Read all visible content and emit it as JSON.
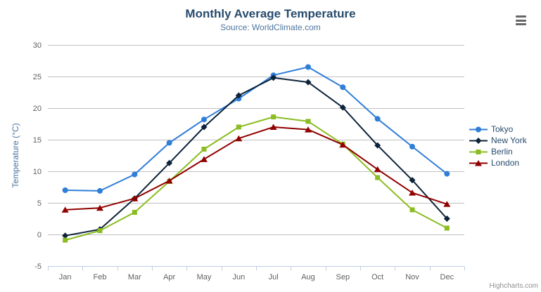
{
  "chart_data": {
    "type": "line",
    "title": "Monthly Average Temperature",
    "subtitle": "Source: WorldClimate.com",
    "xlabel": "",
    "ylabel": "Temperature (°C)",
    "categories": [
      "Jan",
      "Feb",
      "Mar",
      "Apr",
      "May",
      "Jun",
      "Jul",
      "Aug",
      "Sep",
      "Oct",
      "Nov",
      "Dec"
    ],
    "ylim": [
      -5,
      30
    ],
    "yticks": [
      -5,
      0,
      5,
      10,
      15,
      20,
      25,
      30
    ],
    "grid": true,
    "legend_position": "right",
    "series": [
      {
        "name": "Tokyo",
        "color": "#2f7ed8",
        "marker": "circle",
        "values": [
          7.0,
          6.9,
          9.5,
          14.5,
          18.2,
          21.5,
          25.2,
          26.5,
          23.3,
          18.3,
          13.9,
          9.6
        ]
      },
      {
        "name": "New York",
        "color": "#0d233a",
        "marker": "diamond",
        "values": [
          -0.2,
          0.8,
          5.7,
          11.3,
          17.0,
          22.0,
          24.8,
          24.1,
          20.1,
          14.1,
          8.6,
          2.5
        ]
      },
      {
        "name": "Berlin",
        "color": "#8bbc21",
        "marker": "square",
        "values": [
          -0.9,
          0.6,
          3.5,
          8.4,
          13.5,
          17.0,
          18.6,
          17.9,
          14.3,
          9.0,
          3.9,
          1.0
        ]
      },
      {
        "name": "London",
        "color": "#910000",
        "marker": "triangle",
        "values": [
          3.9,
          4.2,
          5.7,
          8.5,
          11.9,
          15.2,
          17.0,
          16.6,
          14.2,
          10.3,
          6.6,
          4.8
        ]
      }
    ]
  },
  "colors": {
    "title": "#274b6d",
    "subtitle": "#4d759e",
    "axis_labels": "#606060",
    "axis_title": "#4d759e",
    "grid_line": "#c0c0c0",
    "axis_line": "#c0d0e0",
    "legend_text": "#274b6d",
    "credits_text": "#909090"
  },
  "credits": "Highcharts.com"
}
